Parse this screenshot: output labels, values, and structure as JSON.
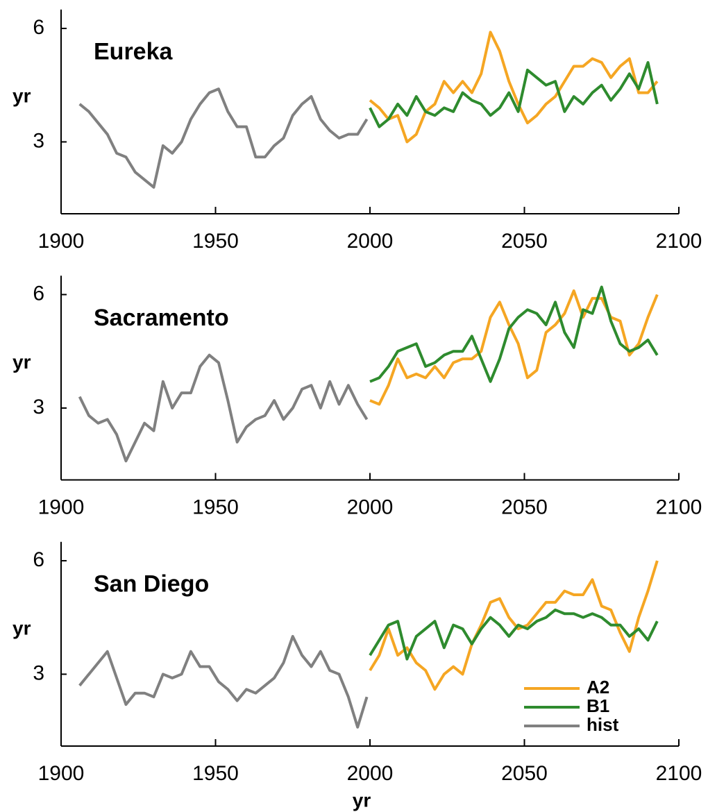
{
  "chart_data": [
    {
      "type": "line",
      "title": "Eureka",
      "y_label": "yr",
      "ylim": [
        1.1,
        6.5
      ],
      "yticks": [
        3,
        6
      ],
      "xlim": [
        1900,
        2100
      ],
      "xticks": [
        1900,
        1950,
        2000,
        2050,
        2100
      ],
      "series": [
        {
          "color": "#f5a623",
          "x": [
            2000,
            2003,
            2006,
            2009,
            2012,
            2015,
            2018,
            2021,
            2024,
            2027,
            2030,
            2033,
            2036,
            2039,
            2042,
            2045,
            2048,
            2051,
            2054,
            2057,
            2060,
            2063,
            2066,
            2069,
            2072,
            2075,
            2078,
            2081,
            2084,
            2087,
            2090,
            2093
          ],
          "values": [
            4.1,
            3.9,
            3.6,
            3.7,
            3.0,
            3.2,
            3.8,
            4.0,
            4.6,
            4.3,
            4.6,
            4.3,
            4.8,
            5.9,
            5.4,
            4.6,
            4.0,
            3.5,
            3.7,
            4.0,
            4.2,
            4.6,
            5.0,
            5.0,
            5.2,
            5.1,
            4.7,
            5.0,
            5.2,
            4.3,
            4.3,
            4.6
          ]
        },
        {
          "color": "#2e8b2e",
          "x": [
            2000,
            2003,
            2006,
            2009,
            2012,
            2015,
            2018,
            2021,
            2024,
            2027,
            2030,
            2033,
            2036,
            2039,
            2042,
            2045,
            2048,
            2051,
            2054,
            2057,
            2060,
            2063,
            2066,
            2069,
            2072,
            2075,
            2078,
            2081,
            2084,
            2087,
            2090,
            2093
          ],
          "values": [
            3.9,
            3.4,
            3.6,
            4.0,
            3.7,
            4.2,
            3.8,
            3.7,
            3.9,
            3.8,
            4.3,
            4.1,
            4.0,
            3.7,
            3.9,
            4.3,
            3.8,
            4.9,
            4.7,
            4.5,
            4.6,
            3.8,
            4.2,
            4.0,
            4.3,
            4.5,
            4.1,
            4.4,
            4.8,
            4.4,
            5.1,
            4.0
          ]
        },
        {
          "color": "#808080",
          "x": [
            1906,
            1909,
            1912,
            1915,
            1918,
            1921,
            1924,
            1927,
            1930,
            1933,
            1936,
            1939,
            1942,
            1945,
            1948,
            1951,
            1954,
            1957,
            1960,
            1963,
            1966,
            1969,
            1972,
            1975,
            1978,
            1981,
            1984,
            1987,
            1990,
            1993,
            1996,
            1999
          ],
          "values": [
            4.0,
            3.8,
            3.5,
            3.2,
            2.7,
            2.6,
            2.2,
            2.0,
            1.8,
            2.9,
            2.7,
            3.0,
            3.6,
            4.0,
            4.3,
            4.4,
            3.8,
            3.4,
            3.4,
            2.6,
            2.6,
            2.9,
            3.1,
            3.7,
            4.0,
            4.2,
            3.6,
            3.3,
            3.1,
            3.2,
            3.2,
            3.6
          ]
        }
      ]
    },
    {
      "type": "line",
      "title": "Sacramento",
      "y_label": "yr",
      "ylim": [
        1.1,
        6.5
      ],
      "yticks": [
        3,
        6
      ],
      "xlim": [
        1900,
        2100
      ],
      "xticks": [
        1900,
        1950,
        2000,
        2050,
        2100
      ],
      "series": [
        {
          "color": "#f5a623",
          "x": [
            2000,
            2003,
            2006,
            2009,
            2012,
            2015,
            2018,
            2021,
            2024,
            2027,
            2030,
            2033,
            2036,
            2039,
            2042,
            2045,
            2048,
            2051,
            2054,
            2057,
            2060,
            2063,
            2066,
            2069,
            2072,
            2075,
            2078,
            2081,
            2084,
            2087,
            2090,
            2093
          ],
          "values": [
            3.2,
            3.1,
            3.6,
            4.3,
            3.8,
            3.9,
            3.8,
            4.1,
            3.8,
            4.2,
            4.3,
            4.3,
            4.5,
            5.4,
            5.8,
            5.2,
            4.7,
            3.8,
            4.0,
            5.0,
            5.2,
            5.5,
            6.1,
            5.4,
            5.9,
            5.9,
            5.4,
            5.3,
            4.4,
            4.7,
            5.4,
            6.0
          ]
        },
        {
          "color": "#2e8b2e",
          "x": [
            2000,
            2003,
            2006,
            2009,
            2012,
            2015,
            2018,
            2021,
            2024,
            2027,
            2030,
            2033,
            2036,
            2039,
            2042,
            2045,
            2048,
            2051,
            2054,
            2057,
            2060,
            2063,
            2066,
            2069,
            2072,
            2075,
            2078,
            2081,
            2084,
            2087,
            2090,
            2093
          ],
          "values": [
            3.7,
            3.8,
            4.1,
            4.5,
            4.6,
            4.7,
            4.1,
            4.2,
            4.4,
            4.5,
            4.5,
            4.9,
            4.3,
            3.7,
            4.3,
            5.1,
            5.4,
            5.6,
            5.5,
            5.2,
            5.8,
            5.0,
            4.6,
            5.6,
            5.5,
            6.2,
            5.3,
            4.7,
            4.5,
            4.6,
            4.8,
            4.4
          ]
        },
        {
          "color": "#808080",
          "x": [
            1906,
            1909,
            1912,
            1915,
            1918,
            1921,
            1924,
            1927,
            1930,
            1933,
            1936,
            1939,
            1942,
            1945,
            1948,
            1951,
            1954,
            1957,
            1960,
            1963,
            1966,
            1969,
            1972,
            1975,
            1978,
            1981,
            1984,
            1987,
            1990,
            1993,
            1996,
            1999
          ],
          "values": [
            3.3,
            2.8,
            2.6,
            2.7,
            2.3,
            1.6,
            2.1,
            2.6,
            2.4,
            3.7,
            3.0,
            3.4,
            3.4,
            4.1,
            4.4,
            4.2,
            3.2,
            2.1,
            2.5,
            2.7,
            2.8,
            3.2,
            2.7,
            3.0,
            3.5,
            3.6,
            3.0,
            3.7,
            3.1,
            3.6,
            3.1,
            2.7
          ]
        }
      ]
    },
    {
      "type": "line",
      "title": "San Diego",
      "y_label": "yr",
      "x_label": "yr",
      "ylim": [
        1.1,
        6.5
      ],
      "yticks": [
        3,
        6
      ],
      "xlim": [
        1900,
        2100
      ],
      "xticks": [
        1900,
        1950,
        2000,
        2050,
        2100
      ],
      "legend": "lower right",
      "series": [
        {
          "name": "A2",
          "color": "#f5a623",
          "x": [
            2000,
            2003,
            2006,
            2009,
            2012,
            2015,
            2018,
            2021,
            2024,
            2027,
            2030,
            2033,
            2036,
            2039,
            2042,
            2045,
            2048,
            2051,
            2054,
            2057,
            2060,
            2063,
            2066,
            2069,
            2072,
            2075,
            2078,
            2081,
            2084,
            2087,
            2090,
            2093
          ],
          "values": [
            3.1,
            3.5,
            4.2,
            3.5,
            3.7,
            3.3,
            3.1,
            2.6,
            3.0,
            3.2,
            3.0,
            3.8,
            4.3,
            4.9,
            5.0,
            4.5,
            4.2,
            4.3,
            4.6,
            4.9,
            4.9,
            5.2,
            5.1,
            5.1,
            5.5,
            4.8,
            4.7,
            4.1,
            3.6,
            4.5,
            5.2,
            6.0
          ]
        },
        {
          "name": "B1",
          "color": "#2e8b2e",
          "x": [
            2000,
            2003,
            2006,
            2009,
            2012,
            2015,
            2018,
            2021,
            2024,
            2027,
            2030,
            2033,
            2036,
            2039,
            2042,
            2045,
            2048,
            2051,
            2054,
            2057,
            2060,
            2063,
            2066,
            2069,
            2072,
            2075,
            2078,
            2081,
            2084,
            2087,
            2090,
            2093
          ],
          "values": [
            3.5,
            3.9,
            4.3,
            4.4,
            3.4,
            4.0,
            4.2,
            4.4,
            3.7,
            4.3,
            4.2,
            3.8,
            4.2,
            4.5,
            4.3,
            4.0,
            4.3,
            4.2,
            4.4,
            4.5,
            4.7,
            4.6,
            4.6,
            4.5,
            4.6,
            4.5,
            4.3,
            4.3,
            4.0,
            4.2,
            3.9,
            4.4
          ]
        },
        {
          "name": "hist",
          "color": "#808080",
          "x": [
            1906,
            1909,
            1912,
            1915,
            1918,
            1921,
            1924,
            1927,
            1930,
            1933,
            1936,
            1939,
            1942,
            1945,
            1948,
            1951,
            1954,
            1957,
            1960,
            1963,
            1966,
            1969,
            1972,
            1975,
            1978,
            1981,
            1984,
            1987,
            1990,
            1993,
            1996,
            1999
          ],
          "values": [
            2.7,
            3.0,
            3.3,
            3.6,
            2.9,
            2.2,
            2.5,
            2.5,
            2.4,
            3.0,
            2.9,
            3.0,
            3.6,
            3.2,
            3.2,
            2.8,
            2.6,
            2.3,
            2.6,
            2.5,
            2.7,
            2.9,
            3.3,
            4.0,
            3.5,
            3.2,
            3.6,
            3.1,
            3.0,
            2.4,
            1.6,
            2.4
          ]
        }
      ]
    }
  ]
}
